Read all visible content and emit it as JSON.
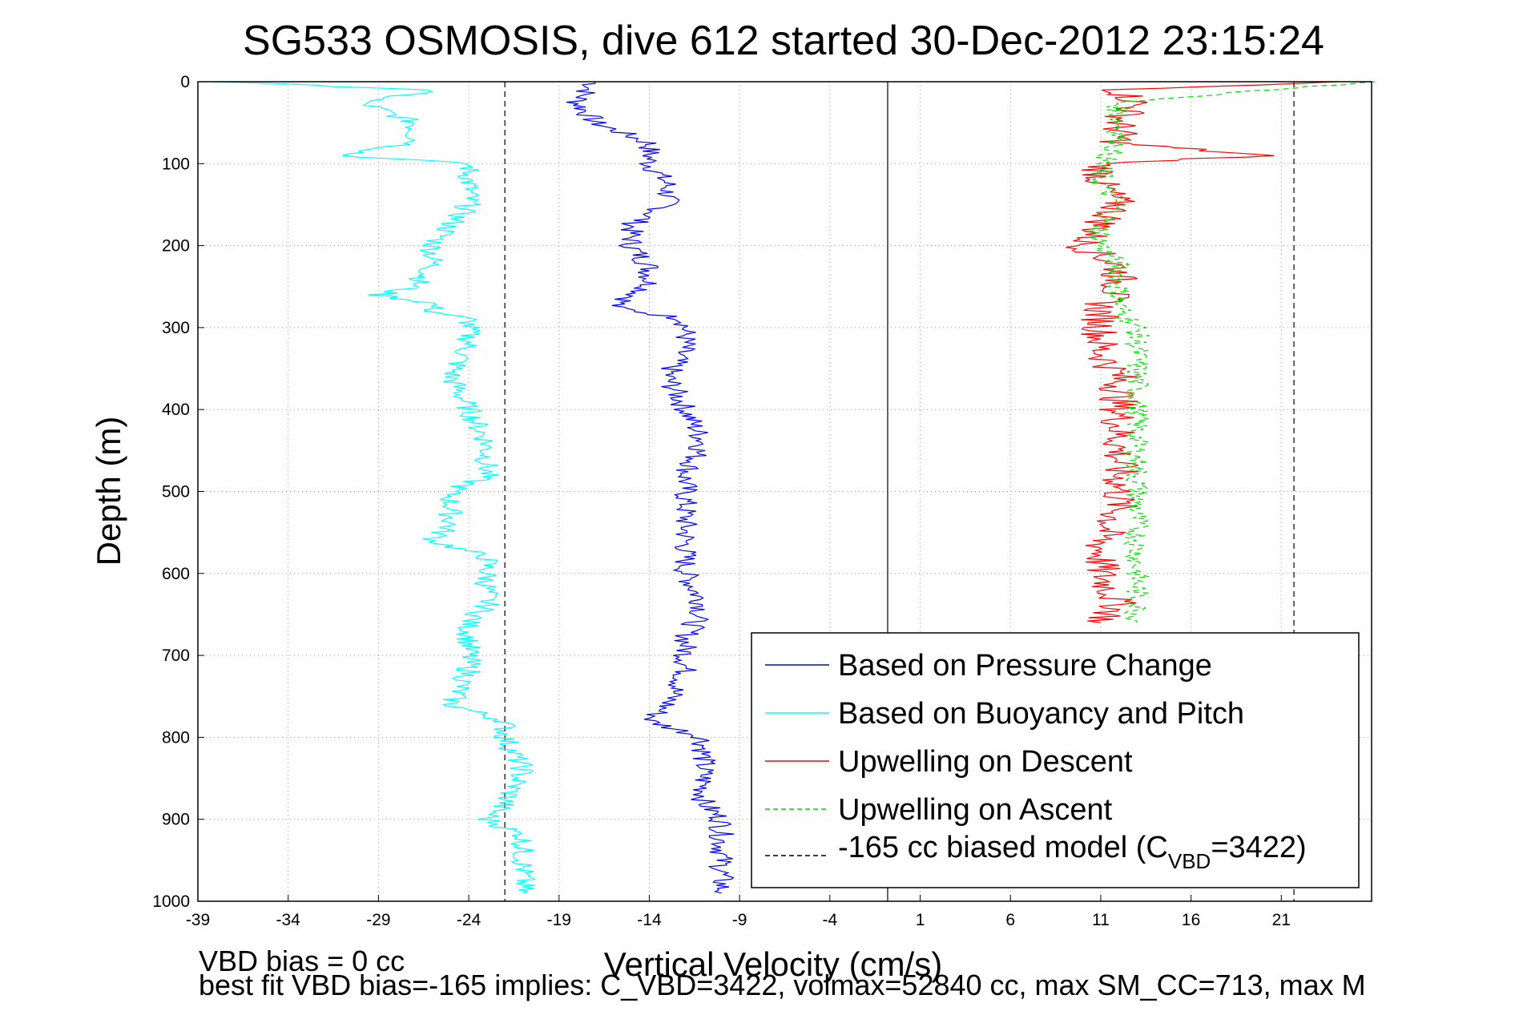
{
  "chart_data": {
    "type": "line",
    "title": "SG533 OSMOSIS, dive 612 started 30-Dec-2012 23:15:24",
    "xlabel": "Vertical Velocity (cm/s)",
    "ylabel": "Depth (m)",
    "xlim": [
      -39,
      26
    ],
    "ylim": [
      1000,
      0
    ],
    "y_reversed": true,
    "grid": true,
    "x_ticks": [
      -39,
      -34,
      -29,
      -24,
      -19,
      -14,
      -9,
      -4,
      1,
      6,
      11,
      16,
      21
    ],
    "x_tick_labels": [
      "-39",
      "-34",
      "-29",
      "-24",
      "-19",
      "-14",
      "-9",
      "-4",
      "1",
      "6",
      "11",
      "16",
      "21"
    ],
    "y_ticks": [
      0,
      100,
      200,
      300,
      400,
      500,
      600,
      700,
      800,
      900,
      1000
    ],
    "y_tick_labels": [
      "0",
      "100",
      "200",
      "300",
      "400",
      "500",
      "600",
      "700",
      "800",
      "900",
      "1000"
    ],
    "legend_position": "bottom-right",
    "series": [
      {
        "name": "Based on Pressure Change",
        "color": "#0000ff",
        "style": "solid",
        "depth": [
          0,
          25,
          50,
          75,
          100,
          125,
          150,
          175,
          200,
          225,
          250,
          275,
          290,
          320,
          360,
          400,
          440,
          480,
          520,
          560,
          600,
          640,
          680,
          720,
          760,
          780,
          800,
          840,
          880,
          900,
          920,
          950,
          975,
          990
        ],
        "velocity": [
          -17,
          -18,
          -17,
          -14,
          -14,
          -13,
          -13,
          -15,
          -15,
          -14,
          -14,
          -16,
          -12,
          -12,
          -13,
          -12,
          -11,
          -12,
          -12,
          -12,
          -12,
          -11,
          -12,
          -12,
          -13,
          -14,
          -11,
          -11,
          -11,
          -10,
          -10,
          -10,
          -10,
          -10
        ]
      },
      {
        "name": "Based on Buoyancy and Pitch",
        "color": "#00ffff",
        "style": "solid",
        "depth": [
          0,
          10,
          25,
          50,
          75,
          90,
          100,
          125,
          150,
          175,
          200,
          225,
          250,
          260,
          270,
          280,
          290,
          320,
          360,
          400,
          440,
          480,
          500,
          540,
          560,
          580,
          600,
          640,
          660,
          680,
          720,
          760,
          780,
          800,
          840,
          880,
          900,
          920,
          950,
          975,
          990
        ],
        "velocity": [
          -38,
          -26,
          -30,
          -27,
          -27,
          -31,
          -24,
          -24,
          -24,
          -25,
          -26,
          -26,
          -27,
          -29,
          -26,
          -26,
          -24,
          -24,
          -25,
          -24,
          -23,
          -23,
          -25,
          -25,
          -26,
          -23,
          -23,
          -23,
          -24,
          -24,
          -24,
          -25,
          -22,
          -22,
          -21,
          -22,
          -23,
          -21,
          -21,
          -21,
          -21
        ]
      },
      {
        "name": "Upwelling on Descent",
        "color": "#ff0000",
        "style": "solid",
        "depth": [
          0,
          10,
          25,
          50,
          75,
          90,
          100,
          125,
          150,
          175,
          200,
          225,
          250,
          275,
          300,
          330,
          360,
          400,
          440,
          480,
          520,
          560,
          600,
          640,
          660
        ],
        "velocity": [
          24,
          12,
          13,
          12,
          12,
          20,
          11,
          11,
          12,
          11,
          10,
          12,
          12,
          11,
          11,
          11,
          12,
          12,
          12,
          12,
          12,
          11,
          11,
          12,
          11
        ]
      },
      {
        "name": "Upwelling on Ascent",
        "color": "#00dd00",
        "style": "dashed",
        "depth": [
          0,
          25,
          50,
          75,
          100,
          125,
          150,
          175,
          200,
          225,
          250,
          275,
          300,
          330,
          360,
          400,
          440,
          480,
          520,
          560,
          600,
          640,
          660
        ],
        "velocity": [
          26,
          12,
          12,
          12,
          11,
          11,
          12,
          11,
          11,
          12,
          12,
          12,
          13,
          13,
          13,
          13,
          13,
          13,
          13,
          13,
          13,
          13,
          13
        ]
      },
      {
        "name": "-165 cc biased model (C_VBD=3422)",
        "color": "#000000",
        "style": "dashed",
        "lines": [
          {
            "velocity": [
              -22,
              -22
            ],
            "depth": [
              0,
              1000
            ]
          },
          {
            "velocity": [
              21.7,
              21.7
            ],
            "depth": [
              0,
              1000
            ]
          }
        ]
      }
    ],
    "reference_line": {
      "velocity": -0.8,
      "color": "#000000"
    }
  },
  "legend": {
    "items": [
      {
        "label": "Based on Pressure Change",
        "color": "#0000ff",
        "dash": "none"
      },
      {
        "label": "Based on Buoyancy and Pitch",
        "color": "#00ffff",
        "dash": "none"
      },
      {
        "label": "Upwelling on Descent",
        "color": "#ff0000",
        "dash": "none"
      },
      {
        "label": "Upwelling on Ascent",
        "color": "#00dd00",
        "dash": "dashed"
      }
    ],
    "model_item": {
      "prefix": "-165 cc biased model (C",
      "subscript": "VBD",
      "suffix": "=3422)",
      "color": "#000000",
      "dash": "dashed"
    }
  },
  "footer": {
    "line1": "VBD bias = 0 cc",
    "line2": "best fit VBD bias=-165 implies: C_VBD=3422, volmax=52840 cc, max SM_CC=713, max M"
  }
}
